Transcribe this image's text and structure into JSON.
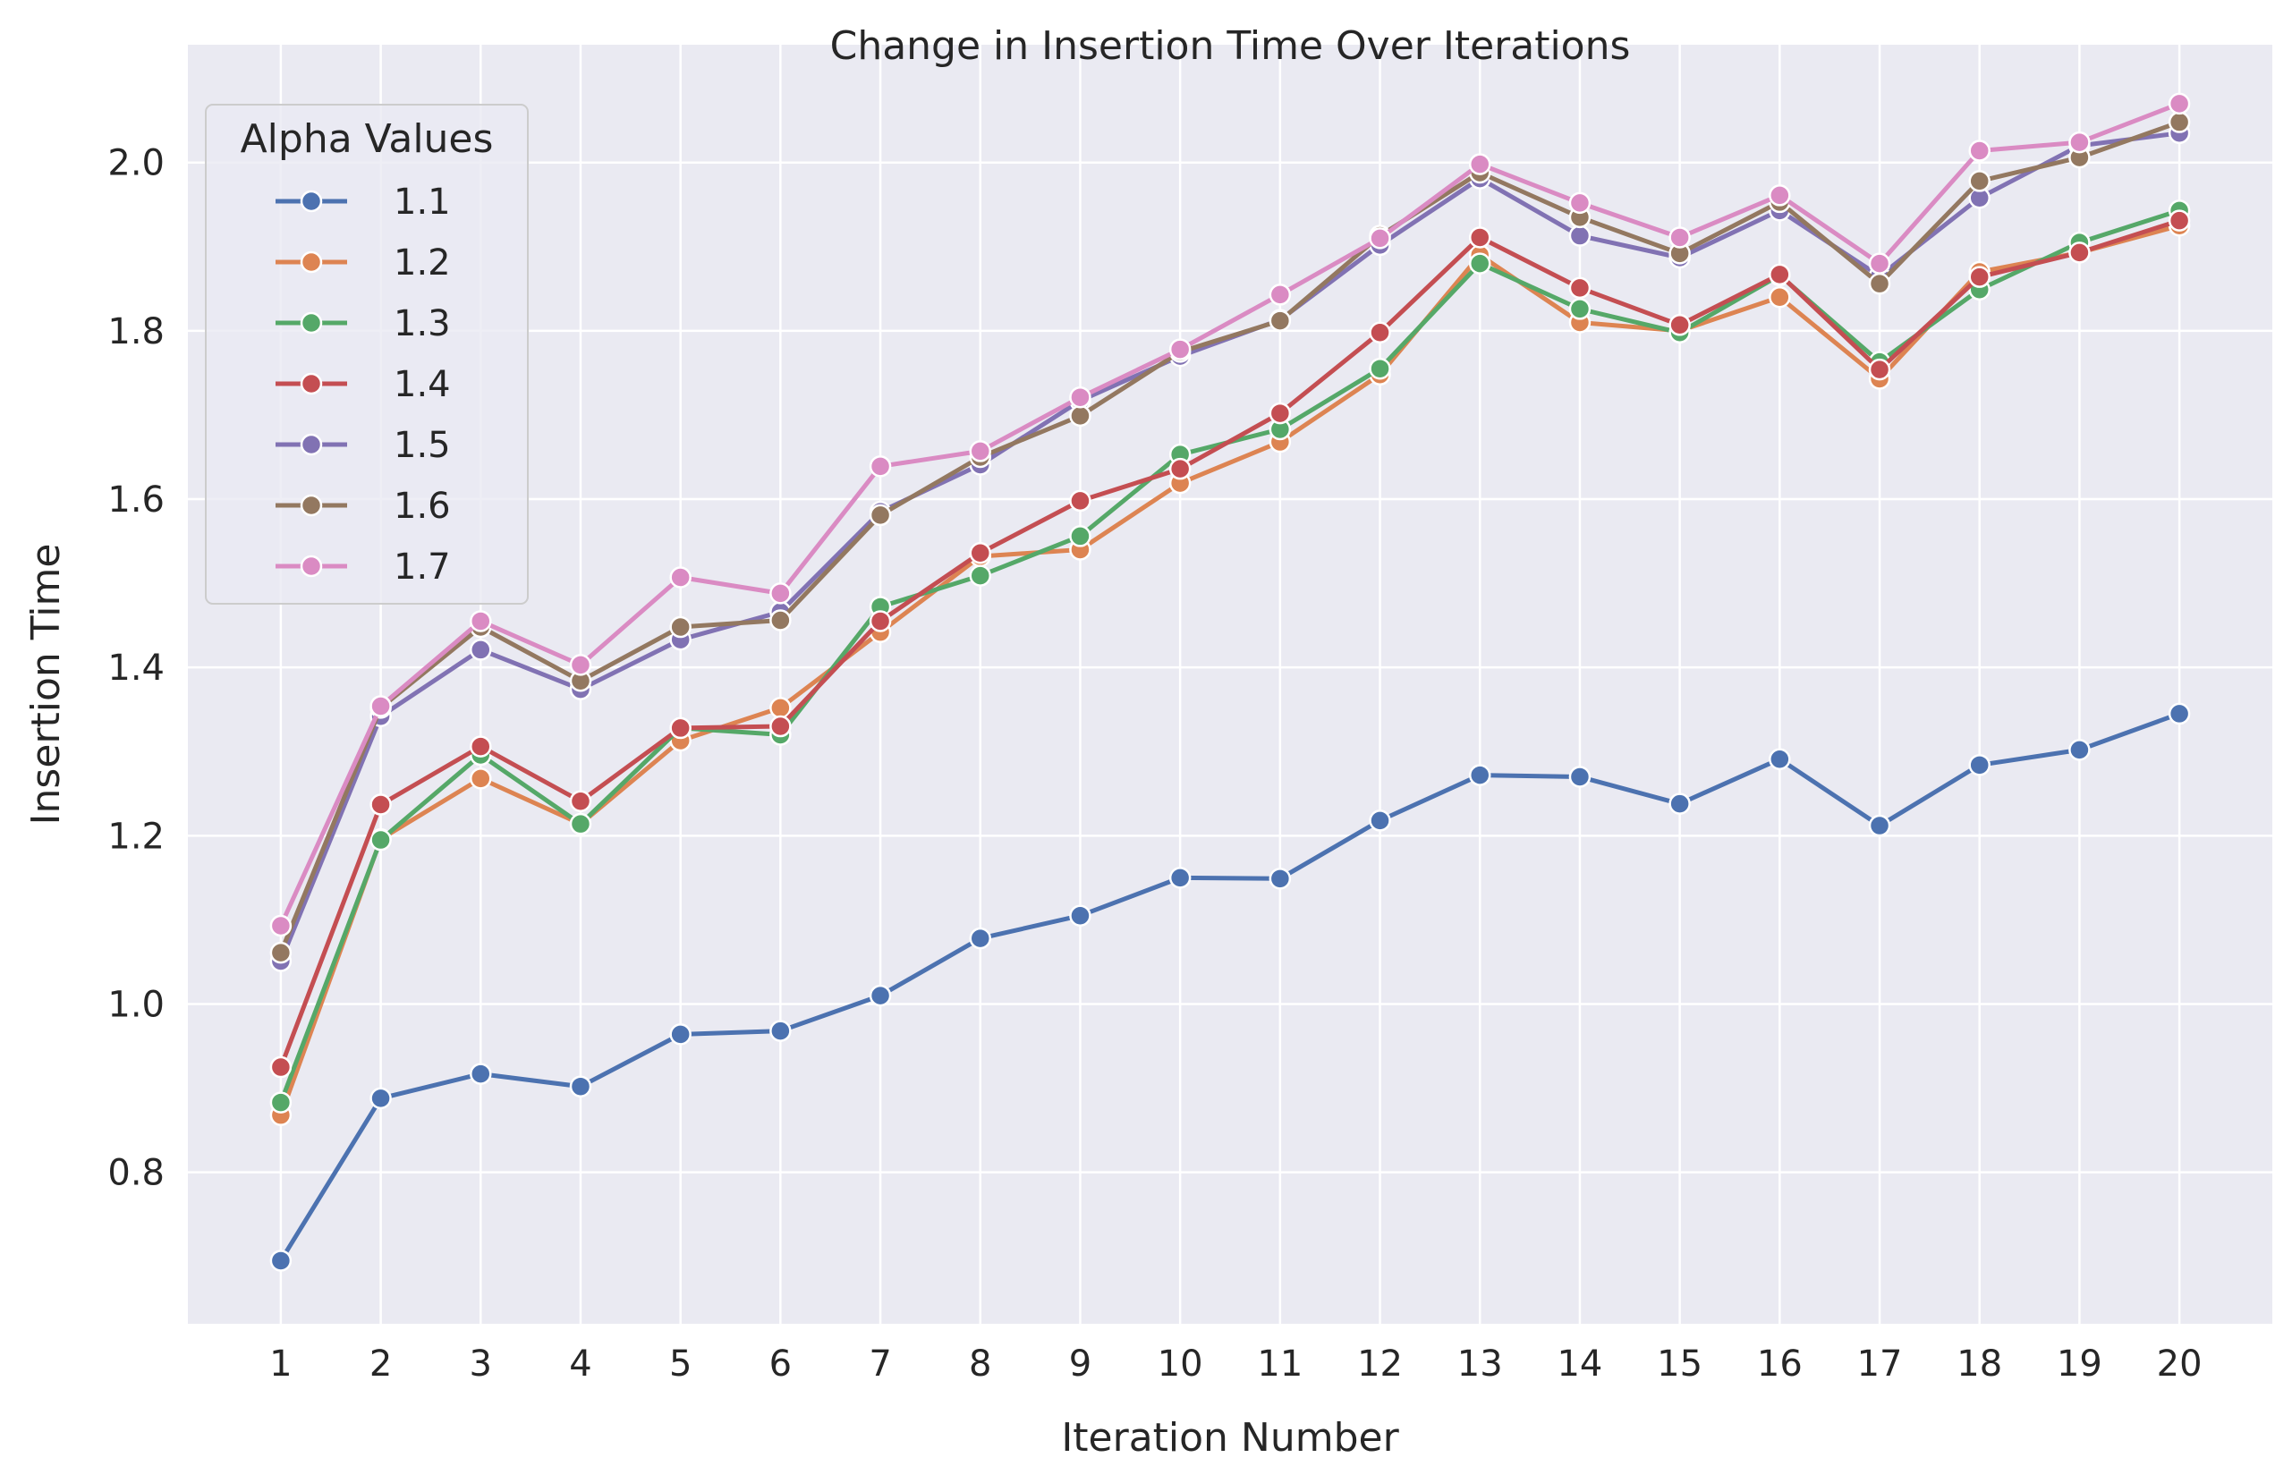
{
  "chart_data": {
    "type": "line",
    "title": "Change in Insertion Time Over Iterations",
    "xlabel": "Iteration Number",
    "ylabel": "Insertion Time",
    "x": [
      1,
      2,
      3,
      4,
      5,
      6,
      7,
      8,
      9,
      10,
      11,
      12,
      13,
      14,
      15,
      16,
      17,
      18,
      19,
      20
    ],
    "ylim": [
      0.62,
      2.14
    ],
    "yticks": [
      0.8,
      1.0,
      1.2,
      1.4,
      1.6,
      1.8,
      2.0
    ],
    "grid": true,
    "legend": {
      "title": "Alpha Values",
      "placement": "top-left"
    },
    "series": [
      {
        "name": "1.1",
        "color": "#4c72b0",
        "values": [
          0.695,
          0.888,
          0.917,
          0.902,
          0.964,
          0.968,
          1.01,
          1.078,
          1.105,
          1.15,
          1.149,
          1.218,
          1.272,
          1.27,
          1.238,
          1.291,
          1.212,
          1.284,
          1.302,
          1.345
        ]
      },
      {
        "name": "1.2",
        "color": "#dd8452",
        "values": [
          0.868,
          1.196,
          1.268,
          1.214,
          1.313,
          1.352,
          1.442,
          1.532,
          1.54,
          1.619,
          1.668,
          1.748,
          1.89,
          1.81,
          1.8,
          1.84,
          1.743,
          1.87,
          1.893,
          1.925
        ]
      },
      {
        "name": "1.3",
        "color": "#55a868",
        "values": [
          0.883,
          1.195,
          1.296,
          1.214,
          1.328,
          1.32,
          1.472,
          1.509,
          1.556,
          1.653,
          1.683,
          1.755,
          1.88,
          1.826,
          1.798,
          1.866,
          1.763,
          1.849,
          1.905,
          1.943
        ]
      },
      {
        "name": "1.4",
        "color": "#c44e52",
        "values": [
          0.925,
          1.237,
          1.306,
          1.241,
          1.328,
          1.33,
          1.455,
          1.536,
          1.598,
          1.636,
          1.702,
          1.798,
          1.911,
          1.851,
          1.807,
          1.867,
          1.754,
          1.864,
          1.893,
          1.931
        ]
      },
      {
        "name": "1.5",
        "color": "#8172b3",
        "values": [
          1.051,
          1.342,
          1.421,
          1.374,
          1.433,
          1.466,
          1.585,
          1.641,
          1.717,
          1.77,
          1.813,
          1.902,
          1.981,
          1.913,
          1.887,
          1.943,
          1.865,
          1.958,
          2.02,
          2.035
        ]
      },
      {
        "name": "1.6",
        "color": "#937860",
        "values": [
          1.061,
          1.352,
          1.448,
          1.384,
          1.448,
          1.456,
          1.581,
          1.65,
          1.699,
          1.775,
          1.812,
          1.913,
          1.988,
          1.935,
          1.892,
          1.953,
          1.856,
          1.978,
          2.006,
          2.048
        ]
      },
      {
        "name": "1.7",
        "color": "#da8bc3",
        "values": [
          1.093,
          1.354,
          1.455,
          1.403,
          1.507,
          1.488,
          1.639,
          1.657,
          1.721,
          1.778,
          1.843,
          1.91,
          1.998,
          1.952,
          1.911,
          1.961,
          1.88,
          2.014,
          2.024,
          2.07
        ]
      }
    ]
  }
}
